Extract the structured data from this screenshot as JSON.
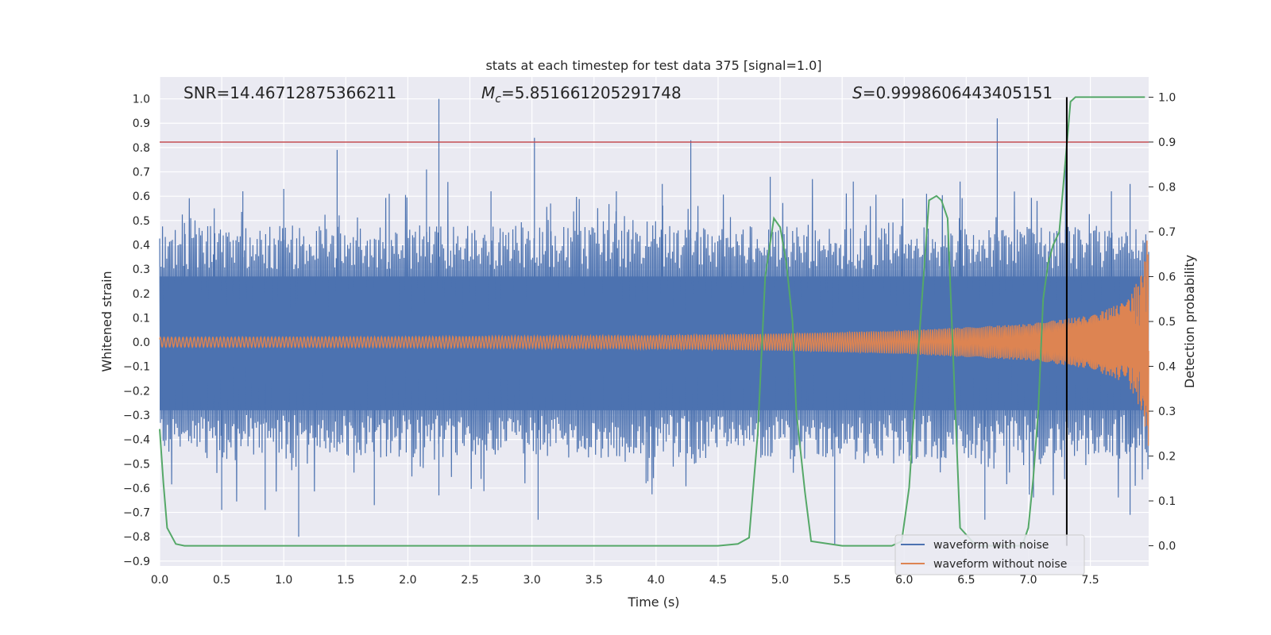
{
  "chart_data": {
    "type": "line",
    "title": "stats at each timestep for test data 375 [signal=1.0]",
    "xlabel": "Time (s)",
    "ylabel_left": "Whitened strain",
    "ylabel_right": "Detection probability",
    "xlim": [
      0.0,
      7.97
    ],
    "ylim_left": [
      -0.92,
      1.09
    ],
    "ylim_right": [
      -0.045,
      1.045
    ],
    "x_ticks": [
      "0.0",
      "0.5",
      "1.0",
      "1.5",
      "2.0",
      "2.5",
      "3.0",
      "3.5",
      "4.0",
      "4.5",
      "5.0",
      "5.5",
      "6.0",
      "6.5",
      "7.0",
      "7.5"
    ],
    "x_tick_values": [
      0.0,
      0.5,
      1.0,
      1.5,
      2.0,
      2.5,
      3.0,
      3.5,
      4.0,
      4.5,
      5.0,
      5.5,
      6.0,
      6.5,
      7.0,
      7.5
    ],
    "y_left_ticks": [
      "1.0",
      "0.9",
      "0.8",
      "0.7",
      "0.6",
      "0.5",
      "0.4",
      "0.3",
      "0.2",
      "0.1",
      "0.0",
      "−0.1",
      "−0.2",
      "−0.3",
      "−0.4",
      "−0.5",
      "−0.6",
      "−0.7",
      "−0.8",
      "−0.9"
    ],
    "y_left_tick_values": [
      1.0,
      0.9,
      0.8,
      0.7,
      0.6,
      0.5,
      0.4,
      0.3,
      0.2,
      0.1,
      0.0,
      -0.1,
      -0.2,
      -0.3,
      -0.4,
      -0.5,
      -0.6,
      -0.7,
      -0.8,
      -0.9
    ],
    "y_right_ticks": [
      "1.0",
      "0.9",
      "0.8",
      "0.7",
      "0.6",
      "0.5",
      "0.4",
      "0.3",
      "0.2",
      "0.1",
      "0.0"
    ],
    "y_right_tick_values": [
      1.0,
      0.9,
      0.8,
      0.7,
      0.6,
      0.5,
      0.4,
      0.3,
      0.2,
      0.1,
      0.0
    ],
    "annotations": {
      "snr": "SNR=14.46712875366211",
      "mc_symbol": "M",
      "mc_subscript": "c",
      "mc_value": "=5.851661205291748",
      "s_symbol": "S",
      "s_value": "=0.9998606443405151"
    },
    "threshold_line": {
      "value_right_axis": 0.9,
      "color": "#c44e52"
    },
    "detection_marker": {
      "x": 7.31,
      "color": "#000000"
    },
    "legend": {
      "placement": "lower-right",
      "entries": [
        {
          "label": "waveform with noise",
          "color": "#4c72b0"
        },
        {
          "label": "waveform without noise",
          "color": "#dd8452"
        }
      ]
    },
    "series": [
      {
        "name": "waveform with noise",
        "axis": "left",
        "color": "#4c72b0",
        "description_envelope": "noise band roughly ±0.45 with spikes",
        "spikes": [
          [
            0.2,
            0.49
          ],
          [
            0.44,
            0.55
          ],
          [
            0.67,
            0.62
          ],
          [
            1.0,
            0.63
          ],
          [
            1.43,
            0.79
          ],
          [
            1.85,
            0.61
          ],
          [
            2.15,
            0.71
          ],
          [
            2.25,
            1.0
          ],
          [
            2.67,
            0.62
          ],
          [
            3.02,
            0.84
          ],
          [
            3.15,
            0.57
          ],
          [
            3.68,
            0.62
          ],
          [
            4.05,
            0.65
          ],
          [
            4.28,
            0.83
          ],
          [
            4.92,
            0.68
          ],
          [
            5.59,
            0.66
          ],
          [
            6.18,
            0.61
          ],
          [
            6.45,
            0.66
          ],
          [
            6.75,
            0.92
          ],
          [
            7.3,
            0.73
          ],
          [
            7.67,
            0.62
          ],
          [
            7.82,
            0.65
          ],
          [
            1.12,
            -0.8
          ],
          [
            0.5,
            -0.69
          ],
          [
            0.85,
            -0.69
          ],
          [
            1.73,
            -0.67
          ],
          [
            3.05,
            -0.73
          ],
          [
            5.44,
            -0.83
          ],
          [
            6.65,
            -0.73
          ],
          [
            7.82,
            -0.71
          ],
          [
            3.92,
            -0.58
          ],
          [
            2.25,
            -0.63
          ]
        ]
      },
      {
        "name": "waveform without noise",
        "axis": "left",
        "color": "#dd8452",
        "amplitude_points": [
          [
            0.0,
            0.02
          ],
          [
            2.0,
            0.022
          ],
          [
            4.0,
            0.028
          ],
          [
            5.0,
            0.035
          ],
          [
            6.0,
            0.048
          ],
          [
            7.0,
            0.075
          ],
          [
            7.5,
            0.11
          ],
          [
            7.8,
            0.17
          ],
          [
            7.93,
            0.3
          ],
          [
            7.97,
            0.48
          ]
        ]
      },
      {
        "name": "detection probability",
        "axis": "right",
        "color": "#55a868",
        "x": [
          0.0,
          0.03,
          0.06,
          0.13,
          0.2,
          1.0,
          2.0,
          3.0,
          4.0,
          4.5,
          4.66,
          4.75,
          4.82,
          4.88,
          4.95,
          5.0,
          5.05,
          5.1,
          5.13,
          5.2,
          5.25,
          5.5,
          5.9,
          5.98,
          6.04,
          6.12,
          6.2,
          6.26,
          6.3,
          6.35,
          6.45,
          6.58,
          6.85,
          6.95,
          7.0,
          7.04,
          7.08,
          7.12,
          7.16,
          7.2,
          7.25,
          7.3,
          7.34,
          7.38,
          7.42,
          7.46,
          7.6,
          7.94
        ],
        "y": [
          0.26,
          0.14,
          0.04,
          0.004,
          0.0,
          0.0,
          0.0,
          0.0,
          0.0,
          0.0,
          0.004,
          0.018,
          0.25,
          0.6,
          0.73,
          0.71,
          0.63,
          0.5,
          0.3,
          0.12,
          0.01,
          0.0,
          0.0,
          0.01,
          0.13,
          0.46,
          0.77,
          0.78,
          0.77,
          0.73,
          0.04,
          0.0,
          0.0,
          0.0,
          0.04,
          0.15,
          0.3,
          0.55,
          0.63,
          0.67,
          0.7,
          0.86,
          0.99,
          1.0,
          1.0,
          1.0,
          1.0,
          1.0
        ]
      }
    ],
    "grid": true,
    "background": "#eaeaf2"
  }
}
